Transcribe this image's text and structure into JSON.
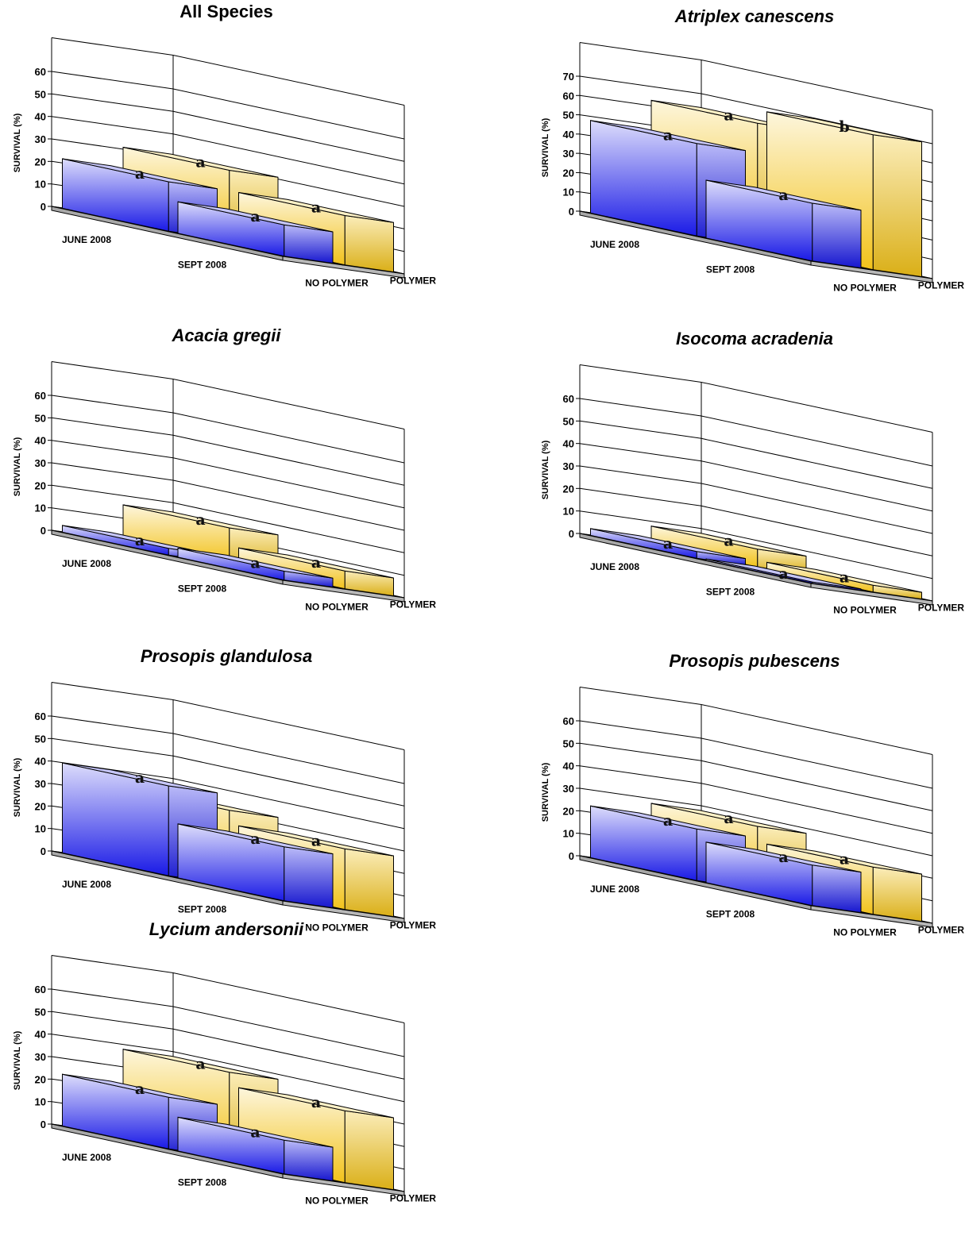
{
  "chart_data": [
    {
      "type": "bar",
      "title": "All Species",
      "title_italic": false,
      "ylabel": "SURVIVAL (%)",
      "xlabel": "",
      "ylim": [
        0,
        60
      ],
      "yticks": [
        "0",
        "10",
        "20",
        "30",
        "40",
        "50",
        "60"
      ],
      "categories": [
        "JUNE 2008",
        "SEPT 2008"
      ],
      "series": [
        {
          "name": "POLYMER",
          "color": "#f2c21a",
          "values": [
            31,
            22
          ],
          "letters": [
            "a",
            "a"
          ]
        },
        {
          "name": "NO POLYMER",
          "color": "#1a1ae6",
          "values": [
            22,
            14
          ],
          "letters": [
            "a",
            "a"
          ]
        }
      ],
      "grid": true
    },
    {
      "type": "bar",
      "title": "Atriplex canescens",
      "title_italic": true,
      "ylabel": "SURVIVAL (%)",
      "xlabel": "",
      "ylim": [
        0,
        70
      ],
      "yticks": [
        "0",
        "10",
        "20",
        "30",
        "40",
        "50",
        "60",
        "70"
      ],
      "categories": [
        "JUNE 2008",
        "SEPT 2008"
      ],
      "series": [
        {
          "name": "POLYMER",
          "color": "#f2c21a",
          "values": [
            63,
            70
          ],
          "letters": [
            "a",
            "b"
          ]
        },
        {
          "name": "NO POLYMER",
          "color": "#1a1ae6",
          "values": [
            48,
            30
          ],
          "letters": [
            "a",
            "a"
          ]
        }
      ],
      "grid": true
    },
    {
      "type": "bar",
      "title": "Acacia gregii",
      "title_italic": true,
      "ylabel": "SURVIVAL (%)",
      "xlabel": "",
      "ylim": [
        0,
        60
      ],
      "yticks": [
        "0",
        "10",
        "20",
        "30",
        "40",
        "50",
        "60"
      ],
      "categories": [
        "JUNE 2008",
        "SEPT 2008"
      ],
      "series": [
        {
          "name": "POLYMER",
          "color": "#f2c21a",
          "values": [
            16,
            8
          ],
          "letters": [
            "a",
            "a"
          ]
        },
        {
          "name": "NO POLYMER",
          "color": "#1a1ae6",
          "values": [
            3,
            4
          ],
          "letters": [
            "a",
            "a"
          ]
        }
      ],
      "grid": true
    },
    {
      "type": "bar",
      "title": "Isocoma acradenia",
      "title_italic": true,
      "ylabel": "SURVIVAL (%)",
      "xlabel": "",
      "ylim": [
        0,
        60
      ],
      "yticks": [
        "0",
        "10",
        "20",
        "30",
        "40",
        "50",
        "60"
      ],
      "categories": [
        "JUNE 2008",
        "SEPT 2008"
      ],
      "series": [
        {
          "name": "POLYMER",
          "color": "#f2c21a",
          "values": [
            8,
            3
          ],
          "letters": [
            "a",
            "a"
          ]
        },
        {
          "name": "NO POLYMER",
          "color": "#1a1ae6",
          "values": [
            3,
            0
          ],
          "letters": [
            "a",
            "a"
          ]
        }
      ],
      "grid": true
    },
    {
      "type": "bar",
      "title": "Prosopis glandulosa",
      "title_italic": true,
      "ylabel": "SURVIVAL (%)",
      "xlabel": "",
      "ylim": [
        0,
        60
      ],
      "yticks": [
        "0",
        "10",
        "20",
        "30",
        "40",
        "50",
        "60"
      ],
      "categories": [
        "JUNE 2008",
        "SEPT 2008"
      ],
      "series": [
        {
          "name": "POLYMER",
          "color": "#f2c21a",
          "values": [
            33,
            27
          ],
          "letters": [
            "a",
            "a"
          ]
        },
        {
          "name": "NO POLYMER",
          "color": "#1a1ae6",
          "values": [
            40,
            24
          ],
          "letters": [
            "a",
            "a"
          ]
        }
      ],
      "grid": true
    },
    {
      "type": "bar",
      "title": "Prosopis pubescens",
      "title_italic": true,
      "ylabel": "SURVIVAL (%)",
      "xlabel": "",
      "ylim": [
        0,
        60
      ],
      "yticks": [
        "0",
        "10",
        "20",
        "30",
        "40",
        "50",
        "60"
      ],
      "categories": [
        "JUNE 2008",
        "SEPT 2008"
      ],
      "series": [
        {
          "name": "POLYMER",
          "color": "#f2c21a",
          "values": [
            28,
            21
          ],
          "letters": [
            "a",
            "a"
          ]
        },
        {
          "name": "NO POLYMER",
          "color": "#1a1ae6",
          "values": [
            23,
            18
          ],
          "letters": [
            "a",
            "a"
          ]
        }
      ],
      "grid": true
    },
    {
      "type": "bar",
      "title": "Lycium andersonii",
      "title_italic": true,
      "ylabel": "SURVIVAL (%)",
      "xlabel": "",
      "ylim": [
        0,
        60
      ],
      "yticks": [
        "0",
        "10",
        "20",
        "30",
        "40",
        "50",
        "60"
      ],
      "categories": [
        "JUNE 2008",
        "SEPT 2008"
      ],
      "series": [
        {
          "name": "POLYMER",
          "color": "#f2c21a",
          "values": [
            38,
            32
          ],
          "letters": [
            "a",
            "a"
          ]
        },
        {
          "name": "NO POLYMER",
          "color": "#1a1ae6",
          "values": [
            23,
            15
          ],
          "letters": [
            "a",
            "a"
          ]
        }
      ],
      "grid": true
    }
  ]
}
